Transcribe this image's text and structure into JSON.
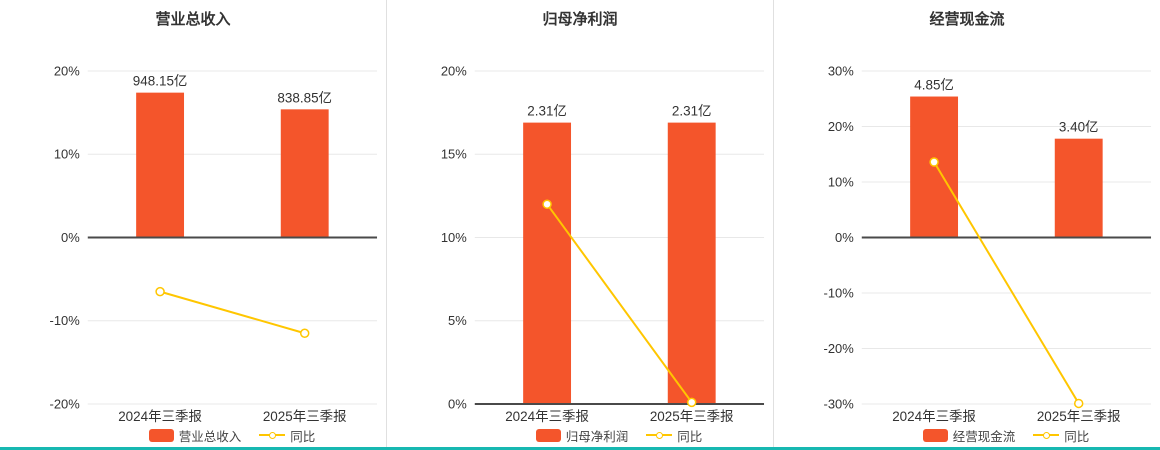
{
  "colors": {
    "bar": "#f4552b",
    "line": "#ffc600",
    "grid": "#e8e8e8",
    "axis": "#4a4a4a",
    "text": "#333333",
    "divider": "#e0e0e0",
    "bottom_accent": "#17b8b1"
  },
  "chart_data": [
    {
      "type": "bar",
      "title": "营业总收入",
      "categories": [
        "2024年三季报",
        "2025年三季报"
      ],
      "series": [
        {
          "name": "营业总收入",
          "type": "bar",
          "unit": "亿",
          "values": [
            948.15,
            838.85
          ],
          "labels": [
            "948.15亿",
            "838.85亿"
          ]
        },
        {
          "name": "同比",
          "type": "line",
          "unit": "%",
          "values": [
            -6.5,
            -11.5
          ]
        }
      ],
      "ylim": [
        -20,
        20
      ],
      "yticks": [
        "20%",
        "10%",
        "0%",
        "-10%",
        "-20%"
      ],
      "bar_top_axis_value": 17.4,
      "grid": true,
      "legend_position": "bottom"
    },
    {
      "type": "bar",
      "title": "归母净利润",
      "categories": [
        "2024年三季报",
        "2025年三季报"
      ],
      "series": [
        {
          "name": "归母净利润",
          "type": "bar",
          "unit": "亿",
          "values": [
            2.31,
            2.31
          ],
          "labels": [
            "2.31亿",
            "2.31亿"
          ]
        },
        {
          "name": "同比",
          "type": "line",
          "unit": "%",
          "values": [
            12.0,
            0.1
          ]
        }
      ],
      "ylim": [
        0,
        20
      ],
      "yticks": [
        "20%",
        "15%",
        "10%",
        "5%",
        "0%"
      ],
      "bar_top_axis_value": 16.9,
      "grid": true,
      "legend_position": "bottom"
    },
    {
      "type": "bar",
      "title": "经营现金流",
      "categories": [
        "2024年三季报",
        "2025年三季报"
      ],
      "series": [
        {
          "name": "经营现金流",
          "type": "bar",
          "unit": "亿",
          "values": [
            4.85,
            3.4
          ],
          "labels": [
            "4.85亿",
            "3.40亿"
          ]
        },
        {
          "name": "同比",
          "type": "line",
          "unit": "%",
          "values": [
            13.6,
            -29.9
          ]
        }
      ],
      "ylim": [
        -30,
        30
      ],
      "yticks": [
        "30%",
        "20%",
        "10%",
        "0%",
        "-10%",
        "-20%",
        "-30%"
      ],
      "bar_top_axis_value": 25.4,
      "grid": true,
      "legend_position": "bottom"
    }
  ]
}
